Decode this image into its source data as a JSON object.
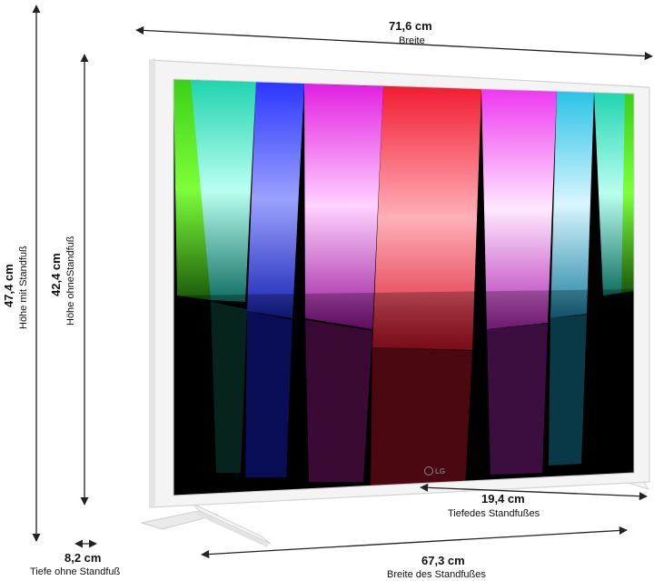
{
  "brand": "LG",
  "dimensions": {
    "width": {
      "value": "71,6 cm",
      "label": "Breite"
    },
    "height_with_stand": {
      "value": "47,4 cm",
      "label": "Höhe mit Standfuß"
    },
    "height_without_stand": {
      "value": "42,4 cm",
      "label": "Höhe ohneStandfuß"
    },
    "stand_depth": {
      "value": "19,4 cm",
      "label": "Tiefedes Standfußes"
    },
    "depth_without_stand": {
      "value": "8,2 cm",
      "label": "Tiefe ohne Standfuß"
    },
    "stand_width": {
      "value": "67,3 cm",
      "label": "Breite des Standfußes"
    }
  },
  "colors": {
    "frame": "#f3f3f3",
    "frame_edge": "#d6d6d6",
    "arrow": "#222222"
  }
}
